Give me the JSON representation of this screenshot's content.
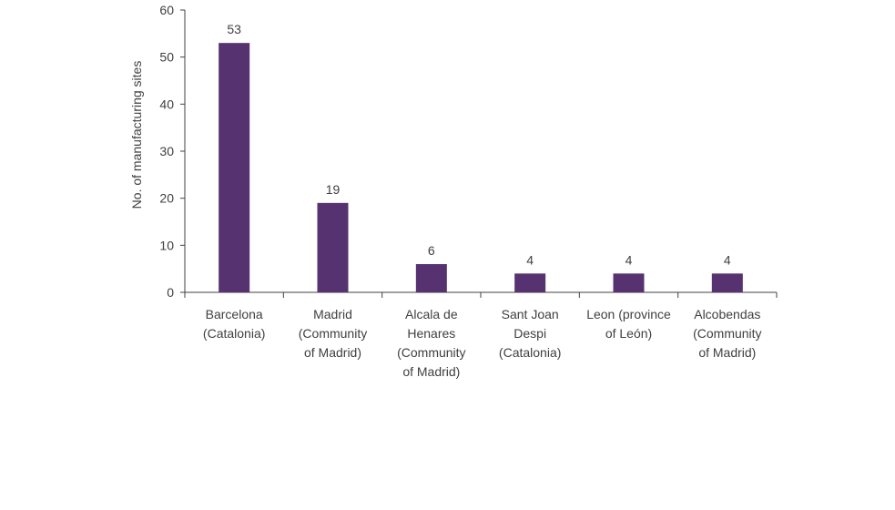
{
  "chart_data": {
    "type": "bar",
    "categories": [
      [
        "Barcelona",
        "(Catalonia)"
      ],
      [
        "Madrid",
        "(Community",
        "of Madrid)"
      ],
      [
        "Alcala de",
        "Henares",
        "(Community",
        "of Madrid)"
      ],
      [
        "Sant Joan",
        "Despi",
        "(Catalonia)"
      ],
      [
        "Leon (province",
        "of León)"
      ],
      [
        "Alcobendas",
        "(Community",
        "of Madrid)"
      ]
    ],
    "values": [
      53,
      19,
      6,
      4,
      4,
      4
    ],
    "data_labels": [
      "53",
      "19",
      "6",
      "4",
      "4",
      "4"
    ],
    "title": "",
    "xlabel": "",
    "ylabel": "No. of manufacturing sites",
    "ylim": [
      0,
      60
    ],
    "yticks": [
      0,
      10,
      20,
      30,
      40,
      50,
      60
    ],
    "ytick_labels": [
      "0",
      "10",
      "20",
      "30",
      "40",
      "50",
      "60"
    ],
    "grid": false,
    "legend": "none",
    "colors": {
      "bar": "#563270",
      "axis": "#404040",
      "text": "#404040"
    }
  }
}
